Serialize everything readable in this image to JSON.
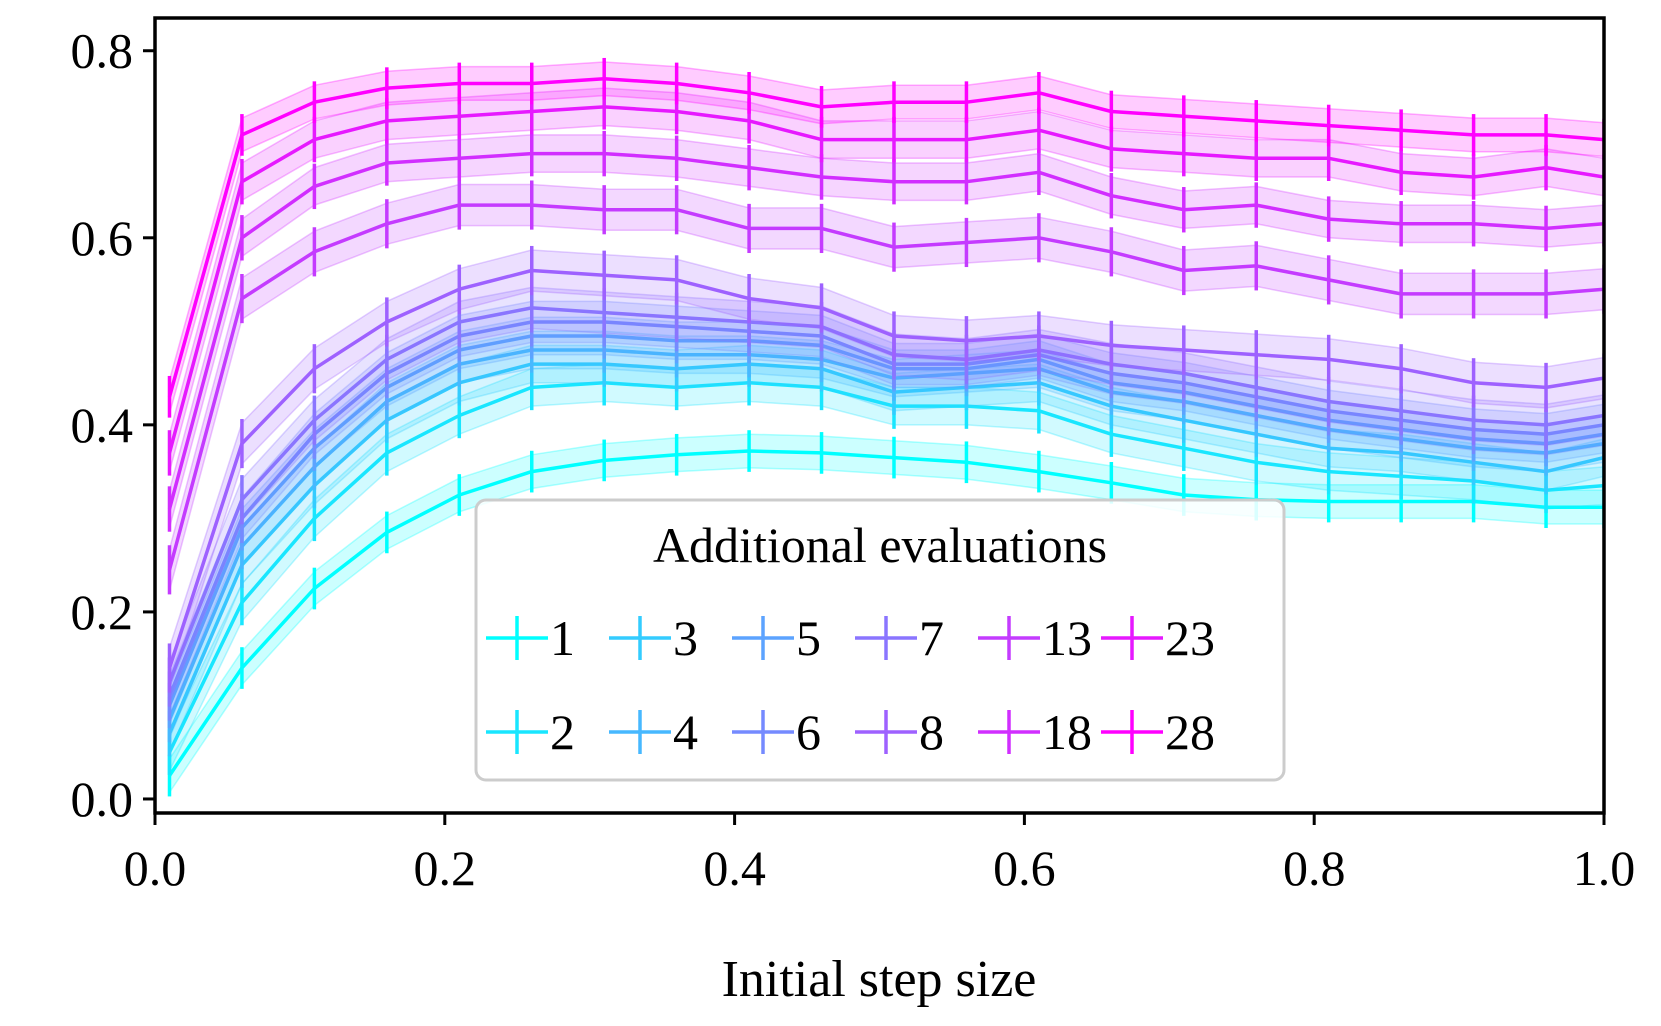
{
  "chart_data": {
    "type": "line",
    "title": "",
    "xlabel": "Initial step size",
    "ylabel": "",
    "xlim": [
      0.0,
      1.0
    ],
    "ylim": [
      -0.015,
      0.835
    ],
    "x_ticks": [
      "0.0",
      "0.2",
      "0.4",
      "0.6",
      "0.8",
      "1.0"
    ],
    "y_ticks": [
      "0.0",
      "0.2",
      "0.4",
      "0.6",
      "0.8"
    ],
    "grid": false,
    "legend": {
      "title": "Additional evaluations",
      "position": "bottom-center",
      "columns": 6
    },
    "x": [
      0.01,
      0.06,
      0.11,
      0.16,
      0.21,
      0.26,
      0.31,
      0.36,
      0.41,
      0.46,
      0.51,
      0.56,
      0.61,
      0.66,
      0.71,
      0.76,
      0.81,
      0.86,
      0.91,
      0.96,
      1.0
    ],
    "series": [
      {
        "name": "1",
        "color": "#00ffff",
        "band": 0.018,
        "values": [
          0.025,
          0.14,
          0.225,
          0.285,
          0.325,
          0.35,
          0.362,
          0.368,
          0.372,
          0.37,
          0.365,
          0.36,
          0.35,
          0.338,
          0.325,
          0.32,
          0.318,
          0.318,
          0.318,
          0.312,
          0.312
        ]
      },
      {
        "name": "2",
        "color": "#19e6ff",
        "band": 0.02,
        "values": [
          0.05,
          0.21,
          0.3,
          0.37,
          0.41,
          0.44,
          0.445,
          0.44,
          0.445,
          0.44,
          0.42,
          0.42,
          0.415,
          0.39,
          0.375,
          0.36,
          0.35,
          0.345,
          0.34,
          0.33,
          0.335
        ]
      },
      {
        "name": "3",
        "color": "#33ccff",
        "band": 0.02,
        "values": [
          0.07,
          0.25,
          0.335,
          0.405,
          0.445,
          0.465,
          0.465,
          0.46,
          0.465,
          0.46,
          0.435,
          0.44,
          0.445,
          0.42,
          0.405,
          0.39,
          0.375,
          0.37,
          0.36,
          0.35,
          0.365
        ]
      },
      {
        "name": "4",
        "color": "#47b8ff",
        "band": 0.02,
        "values": [
          0.085,
          0.27,
          0.355,
          0.425,
          0.465,
          0.48,
          0.48,
          0.475,
          0.475,
          0.47,
          0.45,
          0.455,
          0.46,
          0.435,
          0.425,
          0.41,
          0.395,
          0.385,
          0.375,
          0.37,
          0.38
        ]
      },
      {
        "name": "5",
        "color": "#5ca3ff",
        "band": 0.02,
        "values": [
          0.1,
          0.29,
          0.375,
          0.44,
          0.48,
          0.495,
          0.495,
          0.49,
          0.49,
          0.485,
          0.46,
          0.46,
          0.47,
          0.445,
          0.435,
          0.42,
          0.405,
          0.395,
          0.385,
          0.38,
          0.39
        ]
      },
      {
        "name": "6",
        "color": "#758aff",
        "band": 0.022,
        "values": [
          0.11,
          0.3,
          0.39,
          0.455,
          0.495,
          0.51,
          0.51,
          0.505,
          0.5,
          0.495,
          0.465,
          0.465,
          0.475,
          0.455,
          0.445,
          0.43,
          0.415,
          0.405,
          0.395,
          0.39,
          0.4
        ]
      },
      {
        "name": "7",
        "color": "#8a75ff",
        "band": 0.022,
        "values": [
          0.125,
          0.32,
          0.405,
          0.47,
          0.51,
          0.525,
          0.52,
          0.515,
          0.51,
          0.505,
          0.475,
          0.47,
          0.48,
          0.465,
          0.455,
          0.44,
          0.425,
          0.415,
          0.405,
          0.4,
          0.41
        ]
      },
      {
        "name": "8",
        "color": "#9e61ff",
        "band": 0.022,
        "values": [
          0.14,
          0.38,
          0.46,
          0.51,
          0.545,
          0.565,
          0.56,
          0.555,
          0.535,
          0.525,
          0.495,
          0.49,
          0.495,
          0.485,
          0.48,
          0.475,
          0.47,
          0.46,
          0.445,
          0.44,
          0.45
        ]
      },
      {
        "name": "13",
        "color": "#c43bff",
        "band": 0.022,
        "values": [
          0.245,
          0.535,
          0.585,
          0.615,
          0.635,
          0.635,
          0.63,
          0.63,
          0.61,
          0.61,
          0.59,
          0.595,
          0.6,
          0.585,
          0.565,
          0.57,
          0.555,
          0.54,
          0.54,
          0.54,
          0.545
        ]
      },
      {
        "name": "18",
        "color": "#d12eff",
        "band": 0.02,
        "values": [
          0.31,
          0.6,
          0.655,
          0.68,
          0.685,
          0.69,
          0.69,
          0.685,
          0.675,
          0.665,
          0.66,
          0.66,
          0.67,
          0.645,
          0.63,
          0.635,
          0.62,
          0.615,
          0.615,
          0.61,
          0.615
        ]
      },
      {
        "name": "23",
        "color": "#e619ff",
        "band": 0.02,
        "values": [
          0.37,
          0.66,
          0.705,
          0.725,
          0.73,
          0.735,
          0.74,
          0.735,
          0.725,
          0.705,
          0.705,
          0.705,
          0.715,
          0.695,
          0.69,
          0.685,
          0.685,
          0.67,
          0.665,
          0.675,
          0.665
        ]
      },
      {
        "name": "28",
        "color": "#ff00ff",
        "band": 0.018,
        "values": [
          0.43,
          0.71,
          0.745,
          0.76,
          0.765,
          0.765,
          0.77,
          0.765,
          0.755,
          0.74,
          0.745,
          0.745,
          0.755,
          0.735,
          0.73,
          0.725,
          0.72,
          0.715,
          0.71,
          0.71,
          0.705
        ]
      }
    ]
  }
}
